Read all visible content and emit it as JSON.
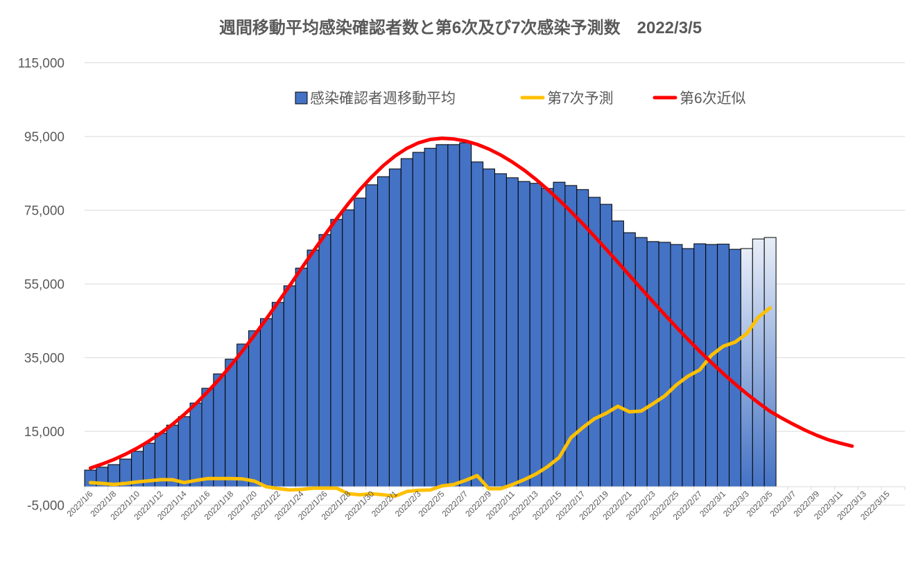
{
  "chart_data": {
    "type": "bar",
    "title": "週間移動平均感染確認者数と第6次及び7次感染予測数　2022/3/5",
    "xlabel": "",
    "ylabel": "",
    "ylim": [
      -5000,
      115000
    ],
    "y_ticks": [
      115000,
      95000,
      75000,
      55000,
      35000,
      15000,
      -5000
    ],
    "y_tick_labels": [
      "115,000",
      "95,000",
      "75,000",
      "55,000",
      "35,000",
      "15,000",
      "-5,000"
    ],
    "grid": true,
    "legend_position": "top",
    "category_count": 70,
    "x_tick_labels": [
      "2022/1/6",
      "2022/1/8",
      "2022/1/10",
      "2022/1/12",
      "2022/1/14",
      "2022/1/16",
      "2022/1/18",
      "2022/1/20",
      "2022/1/22",
      "2022/1/24",
      "2022/1/26",
      "2022/1/28",
      "2022/1/30",
      "2022/2/1",
      "2022/2/3",
      "2022/2/5",
      "2022/2/7",
      "2022/2/9",
      "2022/2/11",
      "2022/2/13",
      "2022/2/15",
      "2022/2/17",
      "2022/2/19",
      "2022/2/21",
      "2022/2/23",
      "2022/2/25",
      "2022/2/27",
      "2022/3/1",
      "2022/3/3",
      "2022/3/5",
      "2022/3/7",
      "2022/3/9",
      "2022/3/11",
      "2022/3/13",
      "2022/3/15"
    ],
    "series": [
      {
        "name": "感染確認者週移動平均",
        "type": "bar",
        "color": "#4472C4",
        "projected_from_index": 56,
        "values": [
          4500,
          5300,
          6000,
          7500,
          9600,
          11800,
          14500,
          16700,
          19000,
          22700,
          26700,
          30600,
          34600,
          38700,
          42300,
          45600,
          50000,
          54500,
          59300,
          64200,
          68400,
          72500,
          75100,
          78300,
          81900,
          84100,
          86200,
          89000,
          90700,
          91800,
          92800,
          92800,
          93300,
          88100,
          86200,
          84900,
          83800,
          82800,
          82300,
          80900,
          82600,
          81700,
          80600,
          78500,
          76600,
          72100,
          68900,
          67600,
          66500,
          66300,
          65700,
          64600,
          65900,
          65700,
          65800,
          64400,
          64600,
          67200,
          67600
        ]
      },
      {
        "name": "第7次予測",
        "type": "line",
        "color": "#FFC000",
        "values": [
          1100,
          900,
          600,
          900,
          1300,
          1600,
          1900,
          1900,
          1100,
          1700,
          2200,
          2200,
          2200,
          2100,
          1500,
          0,
          -500,
          -900,
          -750,
          -400,
          -400,
          -400,
          -1900,
          -2200,
          -1900,
          -2200,
          -2600,
          -1300,
          -1000,
          -900,
          200,
          600,
          1700,
          3000,
          -560,
          -560,
          560,
          1900,
          3400,
          5400,
          7900,
          13300,
          16000,
          18400,
          19900,
          21800,
          20300,
          20500,
          22500,
          24600,
          27600,
          30000,
          31700,
          35700,
          38100,
          39200,
          41500,
          46000,
          48500
        ]
      },
      {
        "name": "第6次近似",
        "type": "line",
        "color": "#FF0000",
        "values": [
          5060,
          6140,
          7380,
          8830,
          10490,
          12380,
          14530,
          16920,
          19580,
          22520,
          25720,
          29210,
          32960,
          36920,
          41100,
          45460,
          49970,
          54530,
          59170,
          63780,
          68260,
          72640,
          76750,
          80600,
          84040,
          87140,
          89710,
          91800,
          93280,
          94190,
          94500,
          94320,
          93770,
          92860,
          91590,
          89990,
          88080,
          85880,
          83400,
          80680,
          77740,
          74630,
          71360,
          67950,
          64450,
          60920,
          57320,
          53740,
          50190,
          46700,
          43270,
          39940,
          36720,
          33630,
          30680,
          27880,
          25230,
          22740,
          20430,
          18600,
          16900,
          15300,
          13900,
          12700,
          11800,
          11000
        ]
      }
    ]
  }
}
